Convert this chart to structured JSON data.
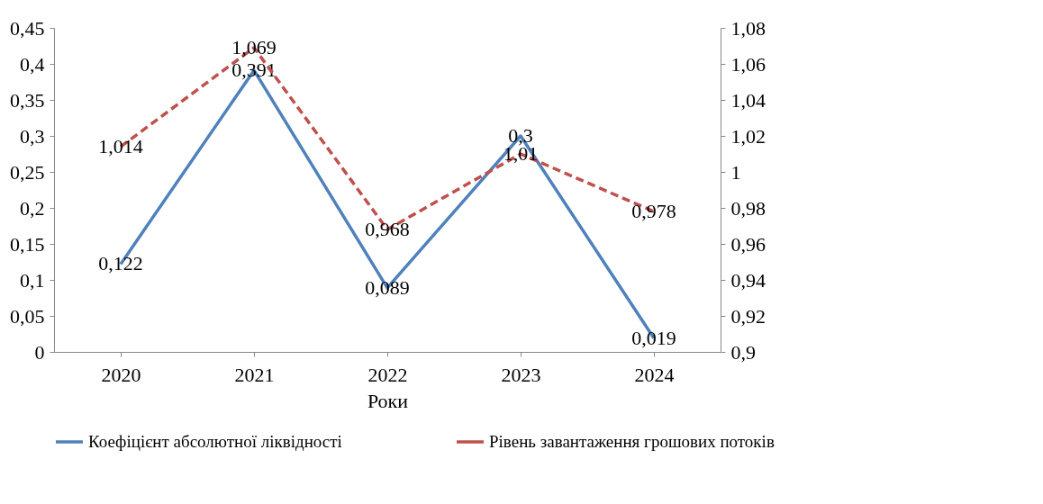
{
  "chart_data": {
    "type": "line",
    "xlabel": "Роки",
    "categories": [
      "2020",
      "2021",
      "2022",
      "2023",
      "2024"
    ],
    "series": [
      {
        "name": "Коефіцієнт абсолютної ліквідності",
        "color": "#4f81bd",
        "line_style": "solid",
        "values": [
          0.122,
          0.391,
          0.089,
          0.3,
          0.019
        ],
        "value_labels": [
          "0,122",
          "0,391",
          "0,089",
          "0,3",
          "0,019"
        ]
      },
      {
        "name": "Рівень завантаження  грошових потоків",
        "color": "#c0504d",
        "line_style": "dashed",
        "axis": "y2",
        "values": [
          1.014,
          1.069,
          0.968,
          1.01,
          0.978
        ],
        "value_labels": [
          "1,014",
          "1,069",
          "0,968",
          "1,01",
          "0,978"
        ]
      }
    ],
    "ylim": [
      0,
      0.45
    ],
    "yticks": [
      {
        "value": 0,
        "label": "0"
      },
      {
        "value": 0.05,
        "label": "0,05"
      },
      {
        "value": 0.1,
        "label": "0,1"
      },
      {
        "value": 0.15,
        "label": "0,15"
      },
      {
        "value": 0.2,
        "label": "0,2"
      },
      {
        "value": 0.25,
        "label": "0,25"
      },
      {
        "value": 0.3,
        "label": "0,3"
      },
      {
        "value": 0.35,
        "label": "0,35"
      },
      {
        "value": 0.4,
        "label": "0,4"
      },
      {
        "value": 0.45,
        "label": "0,45"
      }
    ],
    "y2lim": [
      0.9,
      1.08
    ],
    "y2ticks": [
      {
        "value": 0.9,
        "label": "0,9"
      },
      {
        "value": 0.92,
        "label": "0,92"
      },
      {
        "value": 0.94,
        "label": "0,94"
      },
      {
        "value": 0.96,
        "label": "0,96"
      },
      {
        "value": 0.98,
        "label": "0,98"
      },
      {
        "value": 1,
        "label": "1"
      },
      {
        "value": 1.02,
        "label": "1,02"
      },
      {
        "value": 1.04,
        "label": "1,04"
      },
      {
        "value": 1.06,
        "label": "1,06"
      },
      {
        "value": 1.08,
        "label": "1,08"
      }
    ],
    "grid": false,
    "legend": "bottom",
    "marker": "none"
  }
}
